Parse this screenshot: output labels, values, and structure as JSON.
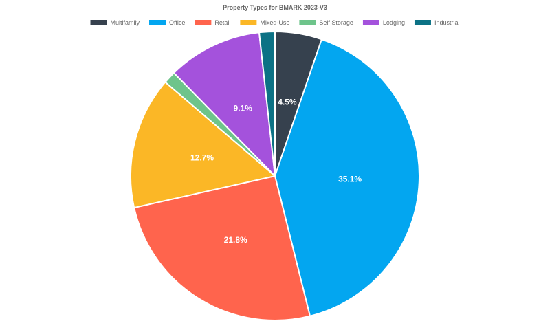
{
  "chart_data": {
    "type": "pie",
    "title": "Property Types for BMARK 2023-V3",
    "legend_position": "top",
    "categories": [
      "Multifamily",
      "Office",
      "Retail",
      "Mixed-Use",
      "Self Storage",
      "Lodging",
      "Industrial"
    ],
    "values": [
      4.5,
      35.1,
      21.8,
      12.7,
      1.2,
      9.1,
      1.5
    ],
    "data_labels": [
      "4.5%",
      "35.1%",
      "21.8%",
      "12.7%",
      "",
      "9.1%",
      ""
    ],
    "colors": [
      "#36414e",
      "#03a6f0",
      "#ff644d",
      "#fbb726",
      "#6ec48b",
      "#a452dc",
      "#0c7285"
    ]
  }
}
